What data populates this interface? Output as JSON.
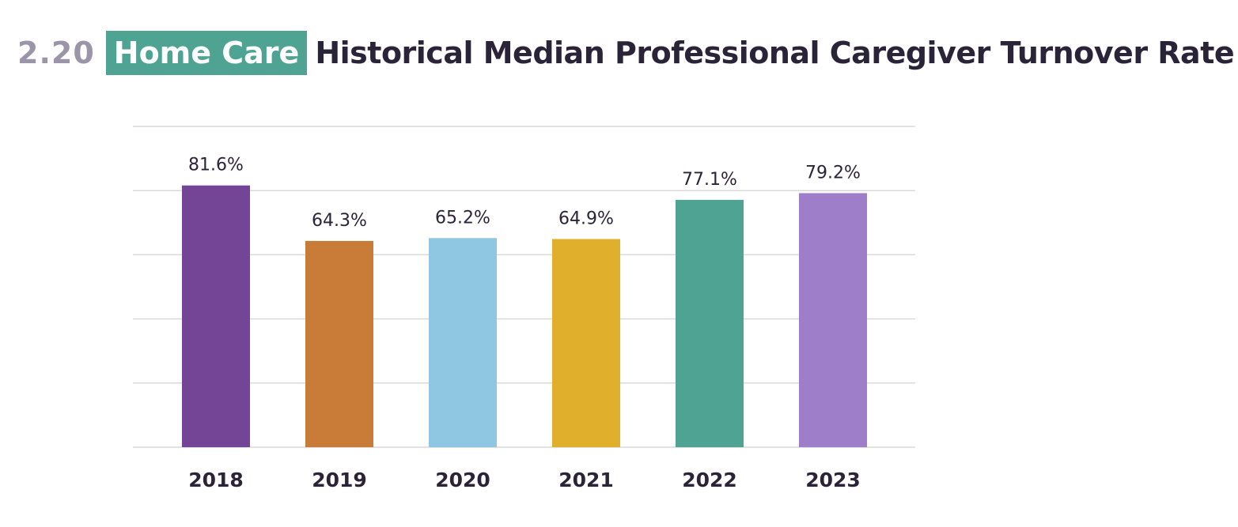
{
  "header": {
    "figure_number": "2.20",
    "tag": "Home Care",
    "title": "Historical Median Professional Caregiver Turnover Rate"
  },
  "chart_data": {
    "type": "bar",
    "title": "Historical Median Professional Caregiver Turnover Rate",
    "xlabel": "",
    "ylabel": "",
    "categories": [
      "2018",
      "2019",
      "2020",
      "2021",
      "2022",
      "2023"
    ],
    "values": [
      81.6,
      64.3,
      65.2,
      64.9,
      77.1,
      79.2
    ],
    "value_labels": [
      "81.6%",
      "64.3%",
      "65.2%",
      "64.9%",
      "77.1%",
      "79.2%"
    ],
    "colors": [
      "#744596",
      "#c97b38",
      "#8fc7e3",
      "#e0b02d",
      "#4fa393",
      "#9e7dc9"
    ],
    "ylim": [
      0,
      100
    ],
    "grid": true,
    "y_tick_labels_shown": false,
    "legend": "none"
  }
}
